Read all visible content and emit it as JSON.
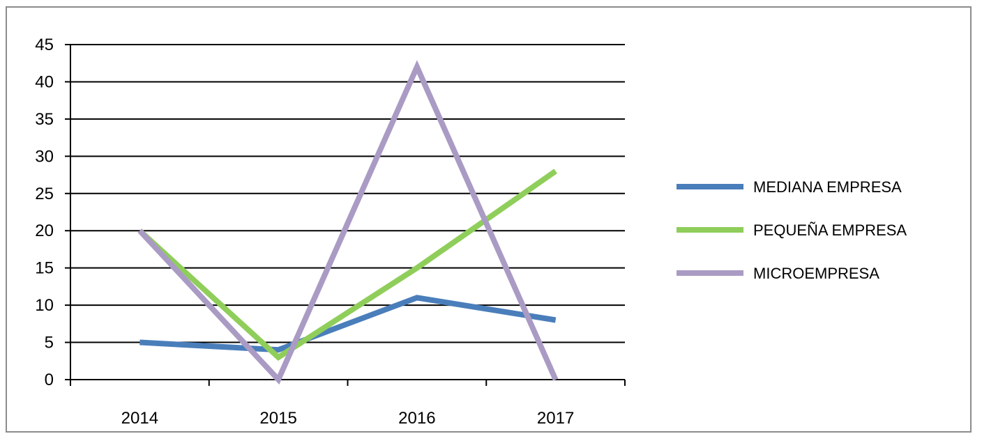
{
  "chart_data": {
    "type": "line",
    "title": "",
    "xlabel": "",
    "ylabel": "",
    "categories": [
      "2014",
      "2015",
      "2016",
      "2017"
    ],
    "ylim": [
      0,
      45
    ],
    "yticks": [
      0,
      5,
      10,
      15,
      20,
      25,
      30,
      35,
      40,
      45
    ],
    "grid": true,
    "legend_position": "right",
    "series": [
      {
        "name": "MEDIANA EMPRESA",
        "color": "#4a7ebb",
        "values": [
          5,
          4,
          11,
          8
        ]
      },
      {
        "name": "PEQUEÑA EMPRESA",
        "color": "#8fce5a",
        "values": [
          20,
          3,
          15,
          28
        ]
      },
      {
        "name": "MICROEMPRESA",
        "color": "#aa9bc4",
        "values": [
          20,
          0,
          42,
          0
        ]
      }
    ]
  }
}
